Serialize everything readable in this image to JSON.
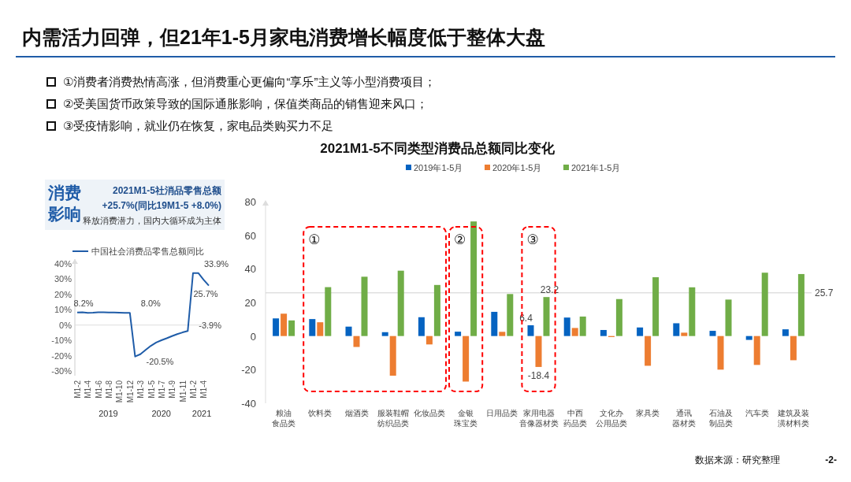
{
  "chart_data": [
    {
      "type": "other",
      "title": "内需活力回弹，但21年1-5月家电消费增长幅度低于整体大盘",
      "annotations": [
        "①消费者消费热情高涨，但消费重心更偏向“享乐”主义等小型消费项目；",
        "②受美国货币政策导致的国际通胀影响，保值类商品的销售迎来风口；",
        "③受疫情影响，就业仍在恢复，家电品类购买力不足"
      ]
    },
    {
      "type": "other",
      "title": "消费影响",
      "annotations": [
        "2021M1-5社消品零售总额",
        "+25.7%(同比19M1-5 +8.0%)",
        "释放消费潜力，国内大循环成为主体"
      ]
    },
    {
      "type": "line",
      "categories": [
        "M1-2",
        null,
        "M1-4",
        null,
        "M1-6",
        null,
        "M1-8",
        null,
        "M1-10",
        null,
        "M1-12",
        null,
        "M1-3",
        null,
        "M1-5",
        null,
        "M1-7",
        null,
        "M1-9",
        null,
        "M1-11",
        null,
        "M1-2",
        null,
        "M1-4",
        null
      ],
      "annotations": [
        "2019",
        "2020",
        "2021"
      ],
      "series": [
        {
          "name": "中国社会消费品零售总额同比",
          "color": "#1f5ca8",
          "values": [
            8.2,
            8.3,
            8.0,
            8.1,
            8.4,
            8.3,
            8.2,
            8.2,
            8.1,
            8.0,
            8.0,
            -20.5,
            -19.0,
            -16.2,
            -13.5,
            -11.4,
            -9.9,
            -8.6,
            -7.2,
            -5.9,
            -4.8,
            -3.9,
            33.9,
            33.9,
            29.6,
            25.7
          ],
          "value_labels": [
            "8.2%",
            null,
            null,
            null,
            null,
            null,
            null,
            null,
            null,
            null,
            "8.0%",
            "-20.5%",
            null,
            null,
            null,
            null,
            null,
            null,
            null,
            null,
            null,
            "-3.9%",
            "33.9%",
            null,
            null,
            "25.7%"
          ]
        }
      ],
      "ylim": [
        -33,
        43
      ],
      "yticks": [
        {
          "value": -30,
          "label": "-30%"
        },
        {
          "value": -20,
          "label": "-20%"
        },
        {
          "value": -10,
          "label": "-10%"
        },
        {
          "value": 0,
          "label": "0%"
        },
        {
          "value": 10,
          "label": "10%"
        },
        {
          "value": 20,
          "label": "20%"
        },
        {
          "value": 30,
          "label": "30%"
        },
        {
          "value": 40,
          "label": "40%"
        }
      ],
      "legend": "top left",
      "marker": "none",
      "line_style": "solid"
    },
    {
      "type": "bar",
      "title": "2021M1-5不同类型消费品总额同比变化",
      "categories": [
        "粮油食品类",
        "饮料类",
        "烟酒类",
        "服装鞋帽纺织品类",
        "化妆品类",
        "金银珠宝类",
        "日用品类",
        "家用电器音像器材类",
        "中西药品类",
        "文化办公用品类",
        "家具类",
        "通讯器材类",
        "石油及制品类",
        "汽车类",
        "建筑及装潢材料类"
      ],
      "series": [
        {
          "name": "2019年1-5月",
          "color": "#0563c1",
          "values": [
            10.5,
            10.1,
            5.6,
            2.3,
            11.2,
            2.6,
            14.4,
            6.4,
            11.0,
            3.6,
            5.1,
            7.6,
            3.1,
            -2.3,
            4.0
          ],
          "value_labels": [
            null,
            null,
            null,
            null,
            null,
            null,
            null,
            "6.4",
            null,
            null,
            null,
            null,
            null,
            null,
            null
          ]
        },
        {
          "name": "2020年1-5月",
          "color": "#ed7d31",
          "values": [
            13.3,
            8.2,
            -6.5,
            -23.6,
            -5.0,
            -27.1,
            2.5,
            -18.4,
            4.8,
            -0.6,
            -17.7,
            2.0,
            -20.0,
            -17.2,
            -14.4
          ],
          "value_labels": [
            null,
            null,
            null,
            null,
            null,
            null,
            null,
            "-18.4",
            null,
            null,
            null,
            null,
            null,
            null,
            null
          ]
        },
        {
          "name": "2021年1-5月",
          "color": "#70ad47",
          "values": [
            9.3,
            29.1,
            35.3,
            38.9,
            30.4,
            68.2,
            25.0,
            23.2,
            11.6,
            22.0,
            35.0,
            29.0,
            21.7,
            37.7,
            36.9
          ],
          "value_labels": [
            null,
            null,
            null,
            null,
            null,
            null,
            null,
            "23.2",
            null,
            null,
            null,
            null,
            null,
            null,
            null
          ]
        }
      ],
      "ylim": [
        -40,
        80
      ],
      "yticks": [
        -40,
        -20,
        0,
        20,
        40,
        60,
        80
      ],
      "ref_lines": [
        {
          "axis": "y",
          "value": 25.7,
          "label": "25.7",
          "color": "#d0d0d0"
        }
      ],
      "legend": "top",
      "annotations": [
        "①",
        "②",
        "③",
        "数据来源：研究整理",
        "-2-"
      ]
    }
  ]
}
